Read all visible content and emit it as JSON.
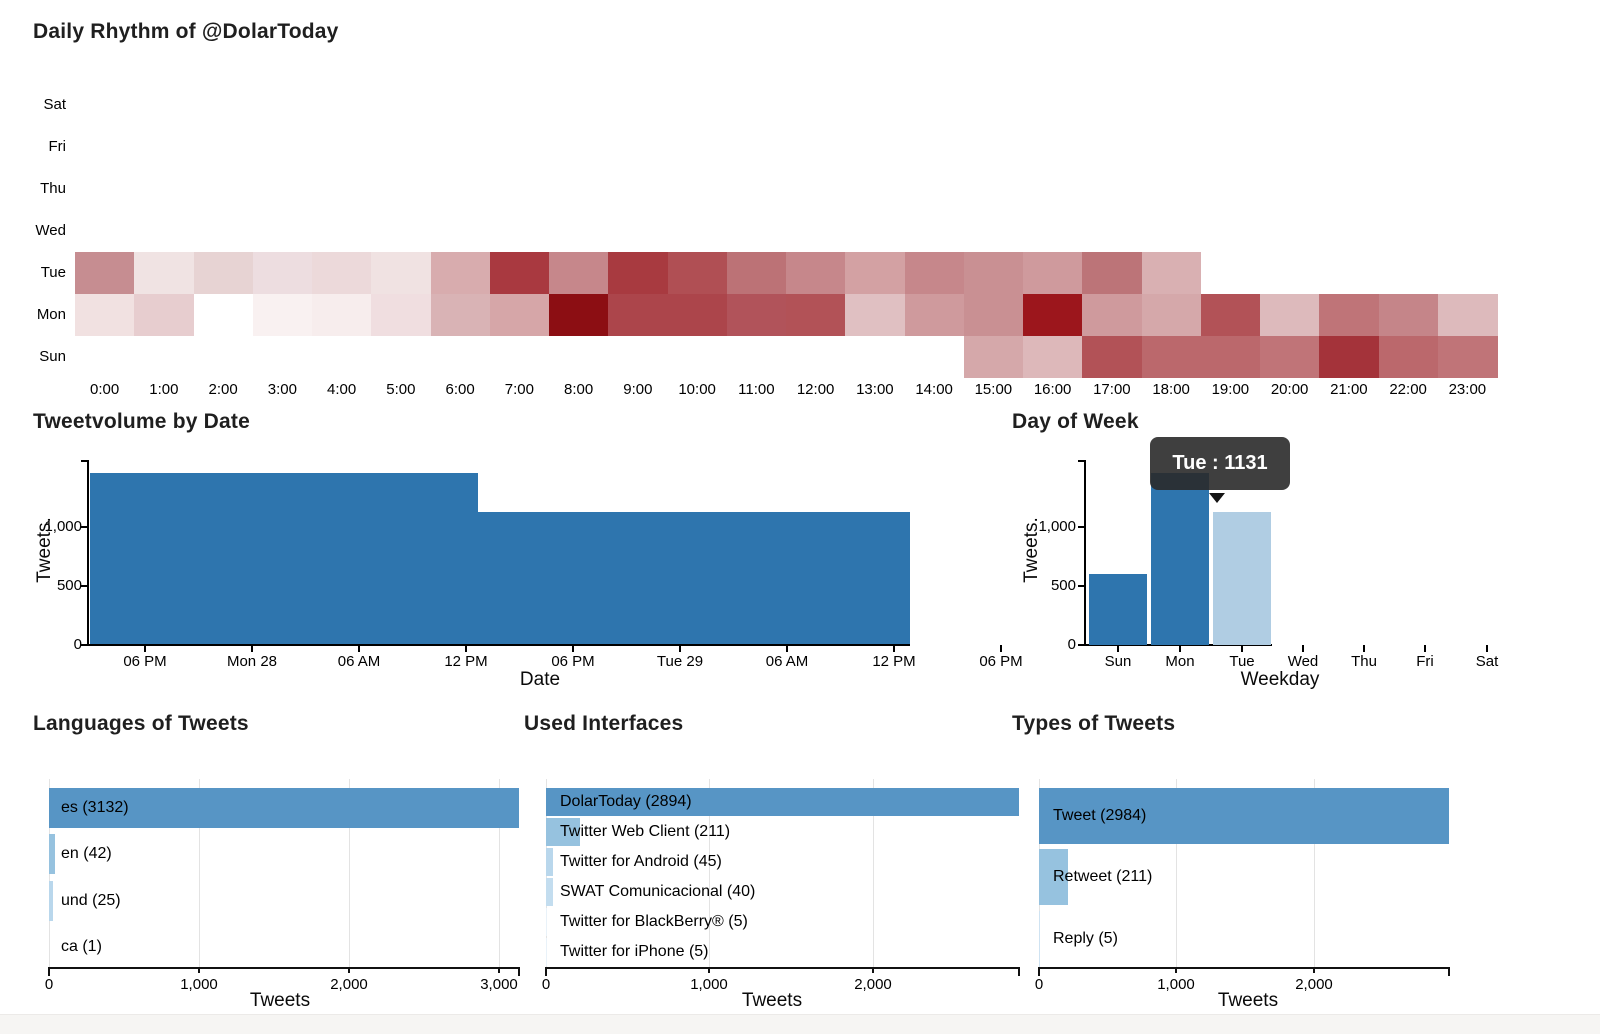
{
  "page": {
    "background": "#ffffff",
    "footer_strip_color": "#f6f5f3"
  },
  "chart_data": [
    {
      "id": "daily_rhythm",
      "type": "heatmap",
      "title": "Daily Rhythm of @DolarToday",
      "x_labels": [
        "0:00",
        "1:00",
        "2:00",
        "3:00",
        "4:00",
        "5:00",
        "6:00",
        "7:00",
        "8:00",
        "9:00",
        "10:00",
        "11:00",
        "12:00",
        "13:00",
        "14:00",
        "15:00",
        "16:00",
        "17:00",
        "18:00",
        "19:00",
        "20:00",
        "21:00",
        "22:00",
        "23:00"
      ],
      "y_labels": [
        "Sat",
        "Fri",
        "Thu",
        "Wed",
        "Tue",
        "Mon",
        "Sun"
      ],
      "colormap": "white (few tweets) to dark red (many tweets)",
      "cells": [
        {
          "day": "Tue",
          "hour": 0,
          "color": "#c68d91"
        },
        {
          "day": "Tue",
          "hour": 1,
          "color": "#f0e3e3"
        },
        {
          "day": "Tue",
          "hour": 2,
          "color": "#e7d3d3"
        },
        {
          "day": "Tue",
          "hour": 3,
          "color": "#eddde0"
        },
        {
          "day": "Tue",
          "hour": 4,
          "color": "#ecd9da"
        },
        {
          "day": "Tue",
          "hour": 5,
          "color": "#f0e2e2"
        },
        {
          "day": "Tue",
          "hour": 6,
          "color": "#d8acae"
        },
        {
          "day": "Tue",
          "hour": 7,
          "color": "#a93940"
        },
        {
          "day": "Tue",
          "hour": 8,
          "color": "#c6878b"
        },
        {
          "day": "Tue",
          "hour": 9,
          "color": "#a83a40"
        },
        {
          "day": "Tue",
          "hour": 10,
          "color": "#b04f54"
        },
        {
          "day": "Tue",
          "hour": 11,
          "color": "#bc7276"
        },
        {
          "day": "Tue",
          "hour": 12,
          "color": "#c6878b"
        },
        {
          "day": "Tue",
          "hour": 13,
          "color": "#d3a1a3"
        },
        {
          "day": "Tue",
          "hour": 14,
          "color": "#c6878b"
        },
        {
          "day": "Tue",
          "hour": 15,
          "color": "#c99093"
        },
        {
          "day": "Tue",
          "hour": 16,
          "color": "#cf9a9d"
        },
        {
          "day": "Tue",
          "hour": 17,
          "color": "#bc7478"
        },
        {
          "day": "Tue",
          "hour": 18,
          "color": "#d9b0b2"
        },
        {
          "day": "Mon",
          "hour": 0,
          "color": "#f1e1e1"
        },
        {
          "day": "Mon",
          "hour": 1,
          "color": "#e7cdcf"
        },
        {
          "day": "Mon",
          "hour": 3,
          "color": "#f9f1f1"
        },
        {
          "day": "Mon",
          "hour": 4,
          "color": "#f7eded"
        },
        {
          "day": "Mon",
          "hour": 5,
          "color": "#f0dee0"
        },
        {
          "day": "Mon",
          "hour": 6,
          "color": "#d9b3b5"
        },
        {
          "day": "Mon",
          "hour": 7,
          "color": "#d6a6a8"
        },
        {
          "day": "Mon",
          "hour": 8,
          "color": "#8c0e13"
        },
        {
          "day": "Mon",
          "hour": 9,
          "color": "#ac454b"
        },
        {
          "day": "Mon",
          "hour": 10,
          "color": "#ac454b"
        },
        {
          "day": "Mon",
          "hour": 11,
          "color": "#b1535a"
        },
        {
          "day": "Mon",
          "hour": 12,
          "color": "#b25257"
        },
        {
          "day": "Mon",
          "hour": 13,
          "color": "#e0c0c2"
        },
        {
          "day": "Mon",
          "hour": 14,
          "color": "#cf9a9d"
        },
        {
          "day": "Mon",
          "hour": 15,
          "color": "#c99093"
        },
        {
          "day": "Mon",
          "hour": 16,
          "color": "#9c161c"
        },
        {
          "day": "Mon",
          "hour": 17,
          "color": "#cf9a9d"
        },
        {
          "day": "Mon",
          "hour": 18,
          "color": "#d5a8aa"
        },
        {
          "day": "Mon",
          "hour": 19,
          "color": "#b25257"
        },
        {
          "day": "Mon",
          "hour": 20,
          "color": "#ddbabc"
        },
        {
          "day": "Mon",
          "hour": 21,
          "color": "#bf7478"
        },
        {
          "day": "Mon",
          "hour": 22,
          "color": "#c58589"
        },
        {
          "day": "Mon",
          "hour": 23,
          "color": "#ddbabc"
        },
        {
          "day": "Sun",
          "hour": 15,
          "color": "#d5a8aa"
        },
        {
          "day": "Sun",
          "hour": 16,
          "color": "#ddb8ba"
        },
        {
          "day": "Sun",
          "hour": 17,
          "color": "#b25257"
        },
        {
          "day": "Sun",
          "hour": 18,
          "color": "#bb686c"
        },
        {
          "day": "Sun",
          "hour": 19,
          "color": "#bb686c"
        },
        {
          "day": "Sun",
          "hour": 20,
          "color": "#c07478"
        },
        {
          "day": "Sun",
          "hour": 21,
          "color": "#a4333a"
        },
        {
          "day": "Sun",
          "hour": 22,
          "color": "#bb686c"
        },
        {
          "day": "Sun",
          "hour": 23,
          "color": "#c07478"
        }
      ]
    },
    {
      "id": "tweetvolume",
      "type": "area",
      "title": "Tweetvolume by Date",
      "xlabel": "Date",
      "ylabel": "Tweets.",
      "series_color": "#2e75ae",
      "y_ticks": [
        {
          "label": "0",
          "value": 0
        },
        {
          "label": "500",
          "value": 500
        },
        {
          "label": "1,000",
          "value": 1000
        }
      ],
      "y_axis_max": 1570,
      "x_ticks": [
        "06 PM",
        "Mon 28",
        "06 AM",
        "12 PM",
        "06 PM",
        "Tue 29",
        "06 AM",
        "12 PM",
        "06 PM"
      ],
      "segments": [
        {
          "label": "Sun afternoon through Mon midday",
          "value": 1460
        },
        {
          "label": "Mon midday through Tue midday",
          "value": 1131
        }
      ]
    },
    {
      "id": "day_of_week",
      "type": "bar",
      "title": "Day of Week",
      "xlabel": "Weekday",
      "ylabel": "Tweets.",
      "categories": [
        "Sun",
        "Mon",
        "Tue",
        "Wed",
        "Thu",
        "Fri",
        "Sat"
      ],
      "values": [
        605,
        1460,
        1131,
        0,
        0,
        0,
        0
      ],
      "bar_colors": [
        "#2e75ae",
        "#2e75ae",
        "#b0cde3",
        "",
        "",
        "",
        ""
      ],
      "highlighted_bar": "Tue",
      "y_ticks": [
        {
          "label": "0",
          "value": 0
        },
        {
          "label": "500",
          "value": 500
        },
        {
          "label": "1,000",
          "value": 1000
        }
      ],
      "y_axis_max": 1570,
      "tooltip": {
        "text": "Tue : 1131",
        "bg": "#2a2a2a",
        "text_color": "#ffffff"
      }
    },
    {
      "id": "languages",
      "type": "hbar",
      "title": "Languages of Tweets",
      "xlabel": "Tweets",
      "x_max": 3132,
      "x_ticks": [
        {
          "label": "0",
          "value": 0
        },
        {
          "label": "1,000",
          "value": 1000
        },
        {
          "label": "2,000",
          "value": 2000
        },
        {
          "label": "3,000",
          "value": 3000
        }
      ],
      "bars": [
        {
          "label": "es (3132)",
          "value": 3132,
          "color": "#5795c5"
        },
        {
          "label": "en (42)",
          "value": 42,
          "color": "#96c2df"
        },
        {
          "label": "und (25)",
          "value": 25,
          "color": "#b9d7ec"
        },
        {
          "label": "ca (1)",
          "value": 1,
          "color": "#d4e6f3"
        }
      ]
    },
    {
      "id": "interfaces",
      "type": "hbar",
      "title": "Used Interfaces",
      "xlabel": "Tweets",
      "x_max": 2894,
      "x_ticks": [
        {
          "label": "0",
          "value": 0
        },
        {
          "label": "1,000",
          "value": 1000
        },
        {
          "label": "2,000",
          "value": 2000
        }
      ],
      "bars": [
        {
          "label": "DolarToday (2894)",
          "value": 2894,
          "color": "#5795c5"
        },
        {
          "label": "Twitter Web Client (211)",
          "value": 211,
          "color": "#96c2df"
        },
        {
          "label": "Twitter for Android (45)",
          "value": 45,
          "color": "#b9d7ec"
        },
        {
          "label": "SWAT Comunicacional (40)",
          "value": 40,
          "color": "#c3ddef"
        },
        {
          "label": "Twitter for BlackBerry® (5)",
          "value": 5,
          "color": "#e9f2f9"
        },
        {
          "label": "Twitter for iPhone (5)",
          "value": 5,
          "color": "#e9f2f9"
        }
      ]
    },
    {
      "id": "types",
      "type": "hbar",
      "title": "Types of Tweets",
      "xlabel": "Tweets",
      "x_max": 2984,
      "x_ticks": [
        {
          "label": "0",
          "value": 0
        },
        {
          "label": "1,000",
          "value": 1000
        },
        {
          "label": "2,000",
          "value": 2000
        }
      ],
      "bars": [
        {
          "label": "Tweet (2984)",
          "value": 2984,
          "color": "#5795c5"
        },
        {
          "label": "Retweet (211)",
          "value": 211,
          "color": "#96c2df"
        },
        {
          "label": "Reply (5)",
          "value": 5,
          "color": "#cfe3f2"
        }
      ]
    }
  ]
}
